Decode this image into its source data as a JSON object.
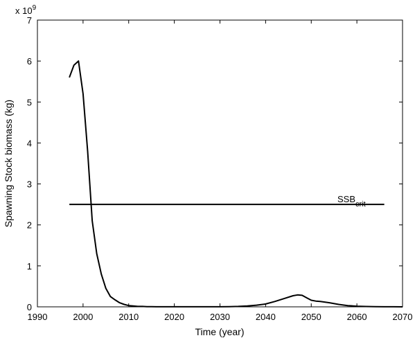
{
  "chart_data": {
    "type": "line",
    "title": "",
    "xlabel": "Time (year)",
    "ylabel": "Spawning Stock biomass (kg)",
    "y_multiplier_label": {
      "base": "x 10",
      "exponent": "9"
    },
    "xlim": [
      1990,
      2070
    ],
    "ylim": [
      0,
      7
    ],
    "xticks": [
      1990,
      2000,
      2010,
      2020,
      2030,
      2040,
      2050,
      2060,
      2070
    ],
    "yticks": [
      0,
      1,
      2,
      3,
      4,
      5,
      6,
      7
    ],
    "grid": false,
    "series": [
      {
        "color": "#000000",
        "x": [
          1997,
          1998,
          1999,
          2000,
          2001,
          2002,
          2003,
          2004,
          2005,
          2006,
          2007,
          2008,
          2009,
          2010,
          2011,
          2012,
          2013,
          2014,
          2015,
          2016,
          2018,
          2020,
          2022,
          2024,
          2026,
          2028,
          2030,
          2032,
          2034,
          2036,
          2038,
          2040,
          2042,
          2044,
          2046,
          2047,
          2048,
          2049,
          2050,
          2051,
          2052,
          2054,
          2056,
          2058,
          2060,
          2062,
          2064,
          2066,
          2068,
          2070
        ],
        "values": [
          5.6,
          5.9,
          6.0,
          5.2,
          3.8,
          2.1,
          1.3,
          0.8,
          0.45,
          0.25,
          0.17,
          0.1,
          0.06,
          0.03,
          0.02,
          0.01,
          0.01,
          0.005,
          0.003,
          0.002,
          0.001,
          0.001,
          0.001,
          0.001,
          0.001,
          0.001,
          0.002,
          0.005,
          0.01,
          0.02,
          0.04,
          0.07,
          0.13,
          0.2,
          0.27,
          0.29,
          0.28,
          0.22,
          0.16,
          0.14,
          0.13,
          0.1,
          0.06,
          0.03,
          0.015,
          0.008,
          0.004,
          0.002,
          0.001,
          0.0
        ]
      }
    ],
    "reference_line": {
      "label": "SSB",
      "label_subscript": "crit",
      "value": 2.5,
      "x_start": 1997,
      "x_end": 2066
    }
  }
}
